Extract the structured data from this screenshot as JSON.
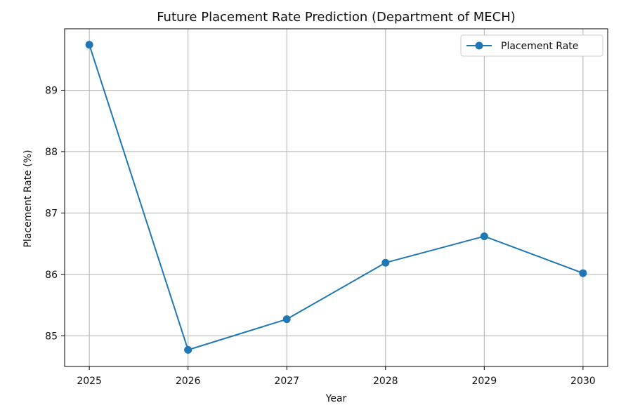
{
  "chart_data": {
    "type": "line",
    "title": "Future Placement Rate Prediction (Department of MECH)",
    "xlabel": "Year",
    "ylabel": "Placement Rate (%)",
    "x": [
      2025,
      2026,
      2027,
      2028,
      2029,
      2030
    ],
    "x_tick_labels": [
      "2025",
      "2026",
      "2027",
      "2028",
      "2029",
      "2030"
    ],
    "y_ticks": [
      85,
      86,
      87,
      88,
      89
    ],
    "y_tick_labels": [
      "85",
      "86",
      "87",
      "88",
      "89"
    ],
    "xlim": [
      2024.75,
      2030.25
    ],
    "ylim": [
      84.5,
      90.0
    ],
    "grid": true,
    "legend_position": "top-right",
    "series": [
      {
        "name": "Placement Rate",
        "color": "#1f77b4",
        "marker": "circle",
        "values": [
          89.74,
          84.77,
          85.27,
          86.19,
          86.62,
          86.02
        ]
      }
    ]
  }
}
